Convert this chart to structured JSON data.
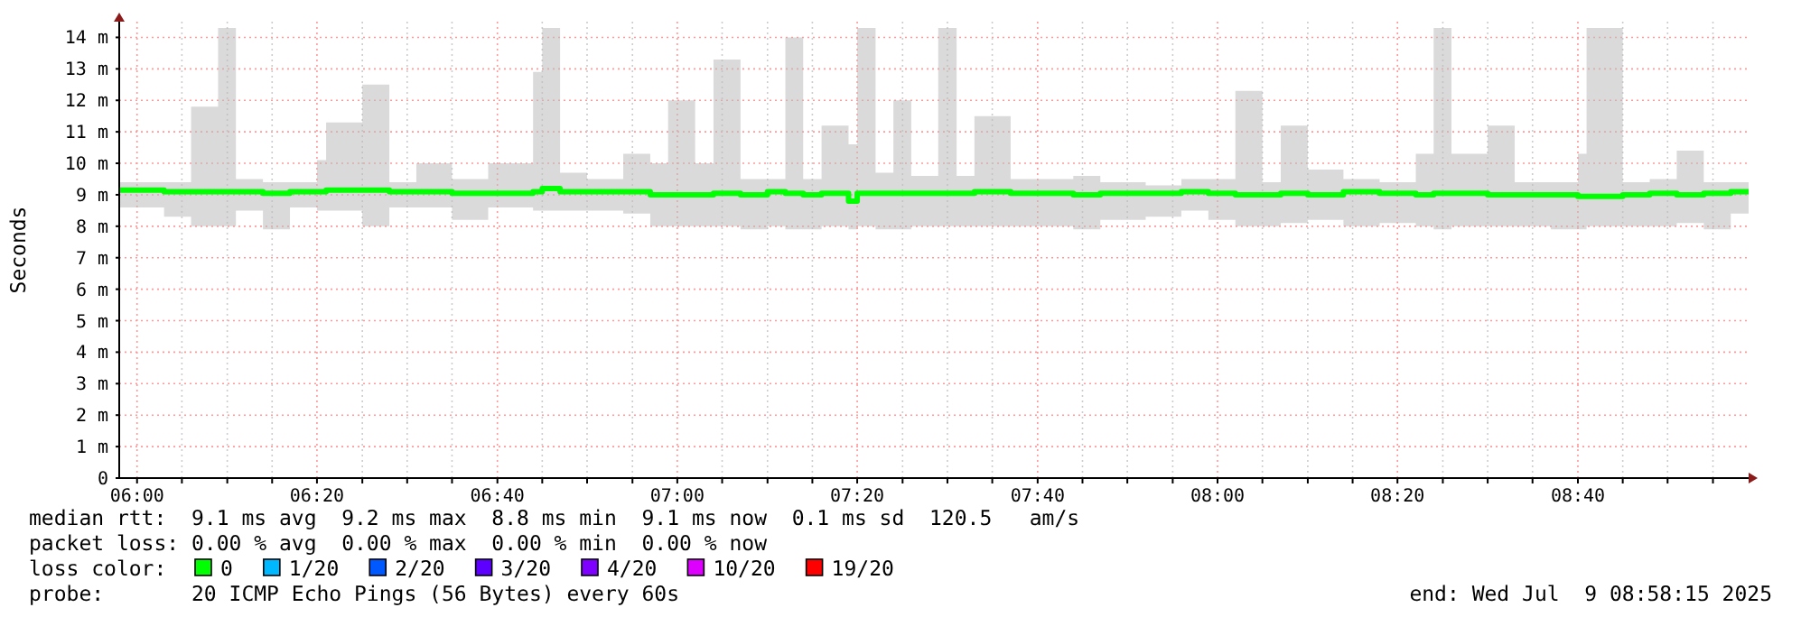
{
  "chart_data": {
    "type": "line",
    "ylabel": "Seconds",
    "legend_title": "loss color:",
    "legend": "bottom",
    "grid": true,
    "line_style": "solid",
    "marker": "none",
    "xlim": [
      5.967,
      8.983
    ],
    "ylim": [
      0,
      14.5
    ],
    "xticks": [
      {
        "value": 6,
        "label": "06:00"
      },
      {
        "value": 6.083,
        "label": null
      },
      {
        "value": 6.167,
        "label": null
      },
      {
        "value": 6.25,
        "label": null
      },
      {
        "value": 6.333,
        "label": "06:20"
      },
      {
        "value": 6.417,
        "label": null
      },
      {
        "value": 6.5,
        "label": null
      },
      {
        "value": 6.583,
        "label": null
      },
      {
        "value": 6.667,
        "label": "06:40"
      },
      {
        "value": 6.75,
        "label": null
      },
      {
        "value": 6.833,
        "label": null
      },
      {
        "value": 6.917,
        "label": null
      },
      {
        "value": 7,
        "label": "07:00"
      },
      {
        "value": 7.083,
        "label": null
      },
      {
        "value": 7.167,
        "label": null
      },
      {
        "value": 7.25,
        "label": null
      },
      {
        "value": 7.333,
        "label": "07:20"
      },
      {
        "value": 7.417,
        "label": null
      },
      {
        "value": 7.5,
        "label": null
      },
      {
        "value": 7.583,
        "label": null
      },
      {
        "value": 7.667,
        "label": "07:40"
      },
      {
        "value": 7.75,
        "label": null
      },
      {
        "value": 7.833,
        "label": null
      },
      {
        "value": 7.917,
        "label": null
      },
      {
        "value": 8,
        "label": "08:00"
      },
      {
        "value": 8.083,
        "label": null
      },
      {
        "value": 8.167,
        "label": null
      },
      {
        "value": 8.25,
        "label": null
      },
      {
        "value": 8.333,
        "label": "08:20"
      },
      {
        "value": 8.417,
        "label": null
      },
      {
        "value": 8.5,
        "label": null
      },
      {
        "value": 8.583,
        "label": null
      },
      {
        "value": 8.667,
        "label": "08:40"
      },
      {
        "value": 8.75,
        "label": null
      },
      {
        "value": 8.833,
        "label": null
      },
      {
        "value": 8.917,
        "label": null
      }
    ],
    "yticks": [
      0,
      {
        "value": 1,
        "label": "1 m"
      },
      {
        "value": 2,
        "label": "2 m"
      },
      {
        "value": 3,
        "label": "3 m"
      },
      {
        "value": 4,
        "label": "4 m"
      },
      {
        "value": 5,
        "label": "5 m"
      },
      {
        "value": 6,
        "label": "6 m"
      },
      {
        "value": 7,
        "label": "7 m"
      },
      {
        "value": 8,
        "label": "8 m"
      },
      {
        "value": 9,
        "label": "9 m"
      },
      {
        "value": 10,
        "label": "10 m"
      },
      {
        "value": 11,
        "label": "11 m"
      },
      {
        "value": 12,
        "label": "12 m"
      },
      {
        "value": 13,
        "label": "13 m"
      },
      {
        "value": 14,
        "label": "14 m"
      }
    ],
    "series": [
      {
        "name": "0",
        "color": "#00ff00",
        "x": [
          5.967,
          6,
          6.05,
          6.1,
          6.15,
          6.183,
          6.233,
          6.283,
          6.333,
          6.35,
          6.417,
          6.467,
          6.517,
          6.583,
          6.65,
          6.733,
          6.75,
          6.783,
          6.833,
          6.9,
          6.95,
          6.983,
          7.033,
          7.067,
          7.117,
          7.167,
          7.2,
          7.233,
          7.267,
          7.317,
          7.333,
          7.367,
          7.4,
          7.433,
          7.483,
          7.517,
          7.55,
          7.617,
          7.667,
          7.733,
          7.783,
          7.867,
          7.933,
          7.983,
          8.033,
          8.083,
          8.117,
          8.167,
          8.233,
          8.3,
          8.367,
          8.4,
          8.433,
          8.5,
          8.55,
          8.617,
          8.667,
          8.683,
          8.75,
          8.8,
          8.85,
          8.9,
          8.95,
          8.983
        ],
        "values": [
          9.15,
          9.15,
          9.1,
          9.1,
          9.1,
          9.1,
          9.05,
          9.1,
          9.1,
          9.15,
          9.15,
          9.1,
          9.1,
          9.05,
          9.05,
          9.1,
          9.2,
          9.1,
          9.1,
          9.1,
          9,
          9,
          9,
          9.05,
          9,
          9.1,
          9.05,
          9,
          9.05,
          8.8,
          9.05,
          9.05,
          9.05,
          9.05,
          9.05,
          9.05,
          9.1,
          9.05,
          9.05,
          9,
          9.05,
          9.05,
          9.1,
          9.05,
          9,
          9,
          9.05,
          9,
          9.1,
          9.05,
          9,
          9.05,
          9.05,
          9,
          9,
          9,
          8.95,
          8.95,
          9,
          9.05,
          9,
          9.05,
          9.1,
          9.1
        ],
        "lower": [
          8.6,
          8.6,
          8.3,
          8,
          8,
          8.5,
          7.9,
          8.6,
          8.5,
          8.5,
          8,
          8.6,
          8.6,
          8.2,
          8.6,
          8.5,
          8.5,
          8.5,
          8.5,
          8.4,
          8,
          8,
          8,
          8,
          7.9,
          8,
          7.9,
          7.9,
          8,
          7.9,
          8,
          7.9,
          7.9,
          8,
          8,
          8,
          8,
          8,
          8,
          7.9,
          8.2,
          8.3,
          8.5,
          8.2,
          8,
          8,
          8.1,
          8.2,
          8,
          8.1,
          8,
          7.9,
          8,
          8,
          8,
          7.9,
          7.9,
          8,
          8,
          8,
          8.1,
          7.9,
          8.4,
          8.5
        ],
        "upper": [
          9.4,
          9.4,
          9.4,
          11.8,
          14.3,
          9.5,
          9.4,
          9.4,
          10.1,
          11.3,
          12.5,
          9.4,
          10,
          9.5,
          10,
          12.9,
          14.3,
          9.7,
          9.5,
          10.3,
          10,
          12,
          10,
          13.3,
          9.5,
          9.5,
          14,
          9.5,
          11.2,
          10.6,
          14.3,
          9.7,
          12,
          9.6,
          14.3,
          9.6,
          11.5,
          9.5,
          9.5,
          9.6,
          9.4,
          9.3,
          9.5,
          9.5,
          12.3,
          9.4,
          11.2,
          9.8,
          9.5,
          9.4,
          10.3,
          14.3,
          10.3,
          11.2,
          9.4,
          9.4,
          10.3,
          14.3,
          9.4,
          9.5,
          10.4,
          9.4,
          9.4,
          9.4
        ]
      },
      {
        "name": "1/20",
        "color": "#00b8ff"
      },
      {
        "name": "2/20",
        "color": "#0059ff"
      },
      {
        "name": "3/20",
        "color": "#5e00ff"
      },
      {
        "name": "4/20",
        "color": "#7e00ff"
      },
      {
        "name": "10/20",
        "color": "#dd00ff"
      },
      {
        "name": "19/20",
        "color": "#ff0000"
      }
    ],
    "annotations": [
      "median rtt:  9.1 ms avg  9.2 ms max  8.8 ms min  9.1 ms now  0.1 ms sd  120.5   am/s",
      "packet loss: 0.00 % avg  0.00 % max  0.00 % min  0.00 % now",
      "probe:       20 ICMP Echo Pings (56 Bytes) every 60s",
      "end: Wed Jul  9 08:58:15 2025"
    ]
  }
}
